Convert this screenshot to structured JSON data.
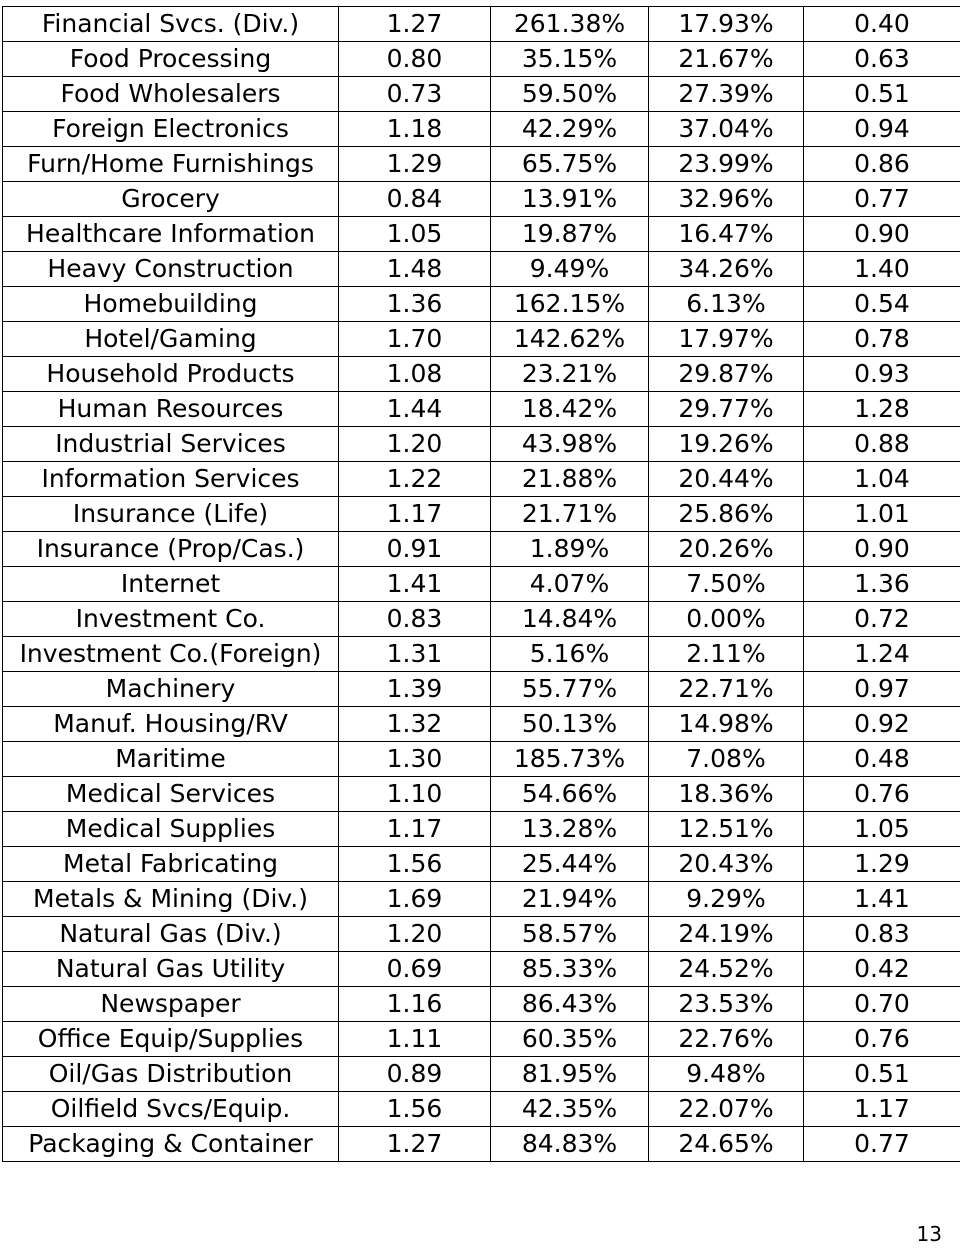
{
  "table": {
    "rows": [
      [
        "Financial Svcs. (Div.)",
        "1.27",
        "261.38%",
        "17.93%",
        "0.40"
      ],
      [
        "Food Processing",
        "0.80",
        "35.15%",
        "21.67%",
        "0.63"
      ],
      [
        "Food Wholesalers",
        "0.73",
        "59.50%",
        "27.39%",
        "0.51"
      ],
      [
        "Foreign Electronics",
        "1.18",
        "42.29%",
        "37.04%",
        "0.94"
      ],
      [
        "Furn/Home Furnishings",
        "1.29",
        "65.75%",
        "23.99%",
        "0.86"
      ],
      [
        "Grocery",
        "0.84",
        "13.91%",
        "32.96%",
        "0.77"
      ],
      [
        "Healthcare Information",
        "1.05",
        "19.87%",
        "16.47%",
        "0.90"
      ],
      [
        "Heavy Construction",
        "1.48",
        "9.49%",
        "34.26%",
        "1.40"
      ],
      [
        "Homebuilding",
        "1.36",
        "162.15%",
        "6.13%",
        "0.54"
      ],
      [
        "Hotel/Gaming",
        "1.70",
        "142.62%",
        "17.97%",
        "0.78"
      ],
      [
        "Household Products",
        "1.08",
        "23.21%",
        "29.87%",
        "0.93"
      ],
      [
        "Human Resources",
        "1.44",
        "18.42%",
        "29.77%",
        "1.28"
      ],
      [
        "Industrial Services",
        "1.20",
        "43.98%",
        "19.26%",
        "0.88"
      ],
      [
        "Information Services",
        "1.22",
        "21.88%",
        "20.44%",
        "1.04"
      ],
      [
        "Insurance (Life)",
        "1.17",
        "21.71%",
        "25.86%",
        "1.01"
      ],
      [
        "Insurance (Prop/Cas.)",
        "0.91",
        "1.89%",
        "20.26%",
        "0.90"
      ],
      [
        "Internet",
        "1.41",
        "4.07%",
        "7.50%",
        "1.36"
      ],
      [
        "Investment Co.",
        "0.83",
        "14.84%",
        "0.00%",
        "0.72"
      ],
      [
        "Investment Co.(Foreign)",
        "1.31",
        "5.16%",
        "2.11%",
        "1.24"
      ],
      [
        "Machinery",
        "1.39",
        "55.77%",
        "22.71%",
        "0.97"
      ],
      [
        "Manuf. Housing/RV",
        "1.32",
        "50.13%",
        "14.98%",
        "0.92"
      ],
      [
        "Maritime",
        "1.30",
        "185.73%",
        "7.08%",
        "0.48"
      ],
      [
        "Medical Services",
        "1.10",
        "54.66%",
        "18.36%",
        "0.76"
      ],
      [
        "Medical Supplies",
        "1.17",
        "13.28%",
        "12.51%",
        "1.05"
      ],
      [
        "Metal Fabricating",
        "1.56",
        "25.44%",
        "20.43%",
        "1.29"
      ],
      [
        "Metals & Mining (Div.)",
        "1.69",
        "21.94%",
        "9.29%",
        "1.41"
      ],
      [
        "Natural Gas (Div.)",
        "1.20",
        "58.57%",
        "24.19%",
        "0.83"
      ],
      [
        "Natural Gas Utility",
        "0.69",
        "85.33%",
        "24.52%",
        "0.42"
      ],
      [
        "Newspaper",
        "1.16",
        "86.43%",
        "23.53%",
        "0.70"
      ],
      [
        "Office Equip/Supplies",
        "1.11",
        "60.35%",
        "22.76%",
        "0.76"
      ],
      [
        "Oil/Gas Distribution",
        "0.89",
        "81.95%",
        "9.48%",
        "0.51"
      ],
      [
        "Oilfield Svcs/Equip.",
        "1.56",
        "42.35%",
        "22.07%",
        "1.17"
      ],
      [
        "Packaging & Container",
        "1.27",
        "84.83%",
        "24.65%",
        "0.77"
      ]
    ]
  },
  "page_number": "13"
}
